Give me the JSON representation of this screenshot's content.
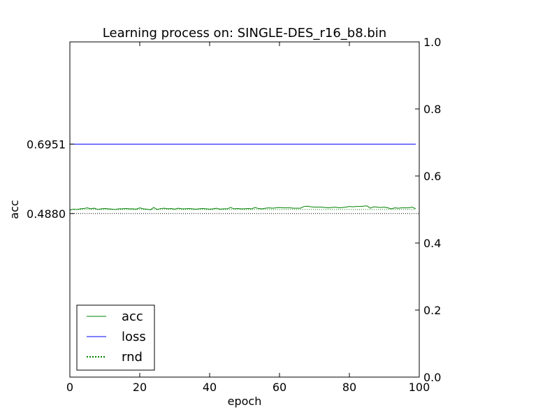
{
  "chart_data": {
    "type": "line",
    "title": "Learning process on: SINGLE-DES_r16_b8.bin",
    "xlabel": "epoch",
    "ylabel": "acc",
    "xlim": [
      0,
      100
    ],
    "ylim_right": [
      0,
      1
    ],
    "x_ticks": [
      "0",
      "20",
      "40",
      "60",
      "80",
      "100"
    ],
    "y_right_ticks": [
      "0.0",
      "0.2",
      "0.4",
      "0.6",
      "0.8",
      "1.0"
    ],
    "y_left_ticks": [
      "0.6951",
      "0.4880"
    ],
    "y_left_tick_values": [
      0.6951,
      0.488
    ],
    "grid": false,
    "legend_position": "lower-left",
    "x": [
      0,
      1,
      2,
      3,
      4,
      5,
      6,
      7,
      8,
      9,
      10,
      11,
      12,
      13,
      14,
      15,
      16,
      17,
      18,
      19,
      20,
      21,
      22,
      23,
      24,
      25,
      26,
      27,
      28,
      29,
      30,
      31,
      32,
      33,
      34,
      35,
      36,
      37,
      38,
      39,
      40,
      41,
      42,
      43,
      44,
      45,
      46,
      47,
      48,
      49,
      50,
      51,
      52,
      53,
      54,
      55,
      56,
      57,
      58,
      59,
      60,
      61,
      62,
      63,
      64,
      65,
      66,
      67,
      68,
      69,
      70,
      71,
      72,
      73,
      74,
      75,
      76,
      77,
      78,
      79,
      80,
      81,
      82,
      83,
      84,
      85,
      86,
      87,
      88,
      89,
      90,
      91,
      92,
      93,
      94,
      95,
      96,
      97,
      98,
      99
    ],
    "series": [
      {
        "name": "acc",
        "color": "#008000",
        "style": "solid",
        "values": [
          0.498,
          0.501,
          0.5,
          0.502,
          0.503,
          0.505,
          0.502,
          0.504,
          0.5,
          0.502,
          0.503,
          0.502,
          0.501,
          0.5,
          0.502,
          0.502,
          0.503,
          0.502,
          0.502,
          0.501,
          0.505,
          0.502,
          0.501,
          0.499,
          0.506,
          0.5,
          0.503,
          0.504,
          0.502,
          0.503,
          0.501,
          0.504,
          0.502,
          0.502,
          0.503,
          0.502,
          0.501,
          0.502,
          0.503,
          0.502,
          0.501,
          0.502,
          0.504,
          0.501,
          0.502,
          0.502,
          0.506,
          0.502,
          0.503,
          0.502,
          0.502,
          0.503,
          0.502,
          0.506,
          0.503,
          0.502,
          0.504,
          0.505,
          0.504,
          0.505,
          0.506,
          0.505,
          0.505,
          0.505,
          0.504,
          0.504,
          0.504,
          0.509,
          0.51,
          0.508,
          0.507,
          0.507,
          0.507,
          0.506,
          0.505,
          0.506,
          0.507,
          0.505,
          0.506,
          0.507,
          0.509,
          0.508,
          0.509,
          0.509,
          0.51,
          0.511,
          0.504,
          0.508,
          0.507,
          0.506,
          0.507,
          0.505,
          0.502,
          0.505,
          0.504,
          0.505,
          0.505,
          0.505,
          0.507,
          0.502
        ]
      },
      {
        "name": "loss",
        "color": "#0000ff",
        "style": "solid",
        "values": [
          0.6951,
          0.6951,
          0.6951,
          0.6951,
          0.6951,
          0.6951,
          0.6951,
          0.6951,
          0.6951,
          0.6951,
          0.6951,
          0.6951,
          0.6951,
          0.6951,
          0.6951,
          0.6951,
          0.6951,
          0.6951,
          0.6951,
          0.6951,
          0.6951,
          0.6951,
          0.6951,
          0.6951,
          0.6951,
          0.6951,
          0.6951,
          0.6951,
          0.6951,
          0.6951,
          0.6951,
          0.6951,
          0.6951,
          0.6951,
          0.6951,
          0.6951,
          0.6951,
          0.6951,
          0.6951,
          0.6951,
          0.6951,
          0.6951,
          0.6951,
          0.6951,
          0.6951,
          0.6951,
          0.6951,
          0.6951,
          0.6951,
          0.6951,
          0.6951,
          0.6951,
          0.6951,
          0.6951,
          0.6951,
          0.6951,
          0.6951,
          0.6951,
          0.6951,
          0.6951,
          0.6951,
          0.6951,
          0.6951,
          0.6951,
          0.6951,
          0.6951,
          0.6951,
          0.6951,
          0.6951,
          0.6951,
          0.6951,
          0.6951,
          0.6951,
          0.6951,
          0.6951,
          0.6951,
          0.6951,
          0.6951,
          0.6951,
          0.6951,
          0.6951,
          0.6951,
          0.6951,
          0.6951,
          0.6951,
          0.6951,
          0.6951,
          0.6951,
          0.6951,
          0.6951,
          0.6951,
          0.6951,
          0.6951,
          0.6951,
          0.6951,
          0.6951,
          0.6951,
          0.6951,
          0.6951,
          0.6951
        ]
      },
      {
        "name": "rnd",
        "color": "#008000",
        "style": "dotted",
        "values": [
          0.5,
          0.5,
          0.5,
          0.5,
          0.5,
          0.5,
          0.5,
          0.5,
          0.5,
          0.5,
          0.5,
          0.5,
          0.5,
          0.5,
          0.5,
          0.5,
          0.5,
          0.5,
          0.5,
          0.5,
          0.5,
          0.5,
          0.5,
          0.5,
          0.5,
          0.5,
          0.5,
          0.5,
          0.5,
          0.5,
          0.5,
          0.5,
          0.5,
          0.5,
          0.5,
          0.5,
          0.5,
          0.5,
          0.5,
          0.5,
          0.5,
          0.5,
          0.5,
          0.5,
          0.5,
          0.5,
          0.5,
          0.5,
          0.5,
          0.5,
          0.5,
          0.5,
          0.5,
          0.5,
          0.5,
          0.5,
          0.5,
          0.5,
          0.5,
          0.5,
          0.5,
          0.5,
          0.5,
          0.5,
          0.5,
          0.5,
          0.5,
          0.5,
          0.5,
          0.5,
          0.5,
          0.5,
          0.5,
          0.5,
          0.5,
          0.5,
          0.5,
          0.5,
          0.5,
          0.5,
          0.5,
          0.5,
          0.5,
          0.5,
          0.5,
          0.5,
          0.5,
          0.5,
          0.5,
          0.5,
          0.5,
          0.5,
          0.5,
          0.5,
          0.5,
          0.5,
          0.5,
          0.5,
          0.5,
          0.5
        ]
      }
    ],
    "reference_lines": [
      {
        "value": 0.488,
        "color": "#000000",
        "style": "dotted"
      }
    ]
  }
}
